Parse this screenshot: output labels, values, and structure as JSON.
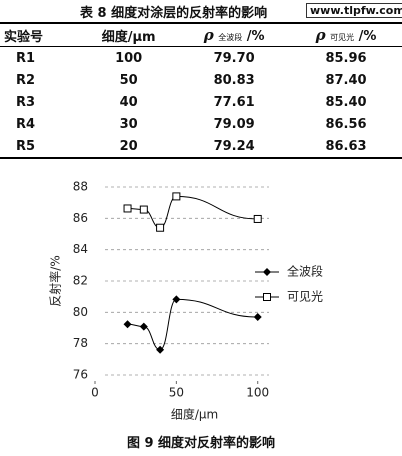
{
  "caption": {
    "title": "表 8 细度对涂层的反射率的影响",
    "watermark": "www.tlpfw.com"
  },
  "table": {
    "header": [
      "实验号",
      "细度/μm",
      {
        "symbol": "ρ",
        "sub": "全波段",
        "unit": "/%"
      },
      {
        "symbol": "ρ",
        "sub": "可见光",
        "unit": "/%"
      }
    ],
    "rows": [
      [
        "R1",
        "100",
        "79.70",
        "85.96"
      ],
      [
        "R2",
        "50",
        "80.83",
        "87.40"
      ],
      [
        "R3",
        "40",
        "77.61",
        "85.40"
      ],
      [
        "R4",
        "30",
        "79.09",
        "86.56"
      ],
      [
        "R5",
        "20",
        "79.24",
        "86.63"
      ]
    ]
  },
  "chart_data": {
    "type": "line",
    "x_label": "细度/μm",
    "y_label": "反射率/%",
    "x": [
      20,
      30,
      40,
      50,
      100
    ],
    "series": [
      {
        "name": "全波段",
        "color": "#000000",
        "marker": "diamond",
        "values": [
          79.24,
          79.09,
          77.61,
          80.83,
          79.7
        ]
      },
      {
        "name": "可见光",
        "color": "#000000",
        "marker": "open-square",
        "values": [
          86.63,
          86.56,
          85.4,
          87.4,
          85.96
        ]
      }
    ],
    "xlim": [
      0,
      110
    ],
    "xticks": [
      0,
      50,
      100
    ],
    "ylim": [
      76,
      88
    ],
    "yticks": [
      76,
      78,
      80,
      82,
      84,
      86,
      88
    ],
    "grid": true,
    "legend": "right"
  },
  "figure_caption": "图 9 细度对反射率的影响"
}
